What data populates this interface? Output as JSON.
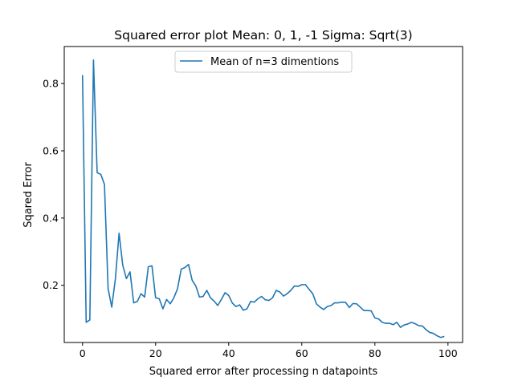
{
  "chart_data": {
    "type": "line",
    "title": "Squared error plot Mean: 0, 1, -1 Sigma: Sqrt(3)",
    "xlabel": "Squared error after processing n datapoints",
    "ylabel": "Sqared Error",
    "xlim": [
      -5,
      104
    ],
    "ylim": [
      0.03,
      0.91
    ],
    "xticks": [
      0,
      20,
      40,
      60,
      80,
      100
    ],
    "xtick_labels": [
      "0",
      "20",
      "40",
      "60",
      "80",
      "100"
    ],
    "yticks": [
      0.2,
      0.4,
      0.6,
      0.8
    ],
    "ytick_labels": [
      "0.2",
      "0.4",
      "0.6",
      "0.8"
    ],
    "grid": false,
    "legend": "upper center",
    "series": [
      {
        "name": "Mean of n=3 dimentions",
        "color": "#1f77b4",
        "x": [
          0,
          1,
          2,
          3,
          4,
          5,
          6,
          7,
          8,
          9,
          10,
          11,
          12,
          13,
          14,
          15,
          16,
          17,
          18,
          19,
          20,
          21,
          22,
          23,
          24,
          25,
          26,
          27,
          28,
          29,
          30,
          31,
          32,
          33,
          34,
          35,
          36,
          37,
          38,
          39,
          40,
          41,
          42,
          43,
          44,
          45,
          46,
          47,
          48,
          49,
          50,
          51,
          52,
          53,
          54,
          55,
          56,
          57,
          58,
          59,
          60,
          61,
          62,
          63,
          64,
          65,
          66,
          67,
          68,
          69,
          70,
          71,
          72,
          73,
          74,
          75,
          76,
          77,
          78,
          79,
          80,
          81,
          82,
          83,
          84,
          85,
          86,
          87,
          88,
          89,
          90,
          91,
          92,
          93,
          94,
          95,
          96,
          97,
          98,
          99
        ],
        "y": [
          0.825,
          0.09,
          0.097,
          0.87,
          0.535,
          0.53,
          0.5,
          0.19,
          0.135,
          0.22,
          0.355,
          0.26,
          0.22,
          0.24,
          0.148,
          0.152,
          0.175,
          0.165,
          0.255,
          0.258,
          0.163,
          0.16,
          0.13,
          0.158,
          0.145,
          0.163,
          0.19,
          0.248,
          0.253,
          0.262,
          0.215,
          0.198,
          0.165,
          0.167,
          0.185,
          0.163,
          0.153,
          0.14,
          0.158,
          0.178,
          0.17,
          0.147,
          0.137,
          0.142,
          0.126,
          0.13,
          0.152,
          0.15,
          0.16,
          0.167,
          0.157,
          0.155,
          0.163,
          0.185,
          0.18,
          0.168,
          0.175,
          0.185,
          0.198,
          0.197,
          0.202,
          0.202,
          0.188,
          0.175,
          0.145,
          0.135,
          0.128,
          0.137,
          0.14,
          0.148,
          0.148,
          0.15,
          0.149,
          0.134,
          0.146,
          0.145,
          0.135,
          0.125,
          0.125,
          0.124,
          0.103,
          0.1,
          0.09,
          0.087,
          0.087,
          0.083,
          0.09,
          0.075,
          0.082,
          0.085,
          0.09,
          0.086,
          0.08,
          0.079,
          0.068,
          0.06,
          0.057,
          0.05,
          0.045,
          0.048
        ]
      }
    ]
  }
}
